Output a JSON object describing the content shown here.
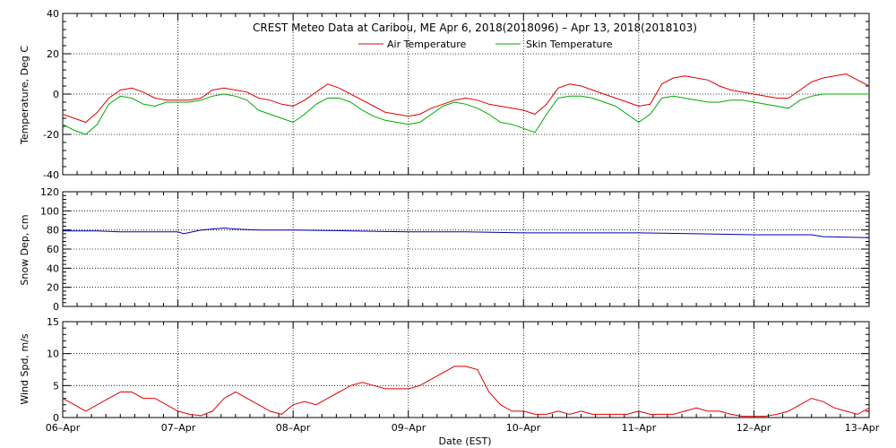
{
  "chart_data": [
    {
      "type": "line",
      "title": "CREST Meteo Data at Caribou, ME   Apr  6, 2018(2018096) – Apr 13, 2018(2018103)",
      "ylabel": "Temperature, Deg C",
      "xlabel": "",
      "ylim": [
        -40,
        40
      ],
      "yticks": [
        "-40",
        "-20",
        "0",
        "20",
        "40"
      ],
      "grid": true,
      "legend": "top-center",
      "series": [
        {
          "name": "Air Temperature",
          "color": "#e00000",
          "x": [
            0.0,
            0.1,
            0.2,
            0.3,
            0.4,
            0.5,
            0.6,
            0.7,
            0.8,
            0.9,
            1.0,
            1.1,
            1.2,
            1.3,
            1.4,
            1.5,
            1.6,
            1.7,
            1.8,
            1.9,
            2.0,
            2.1,
            2.2,
            2.3,
            2.4,
            2.5,
            2.6,
            2.7,
            2.8,
            2.9,
            3.0,
            3.1,
            3.2,
            3.3,
            3.4,
            3.5,
            3.6,
            3.7,
            3.8,
            3.9,
            4.0,
            4.1,
            4.2,
            4.3,
            4.4,
            4.5,
            4.6,
            4.7,
            4.8,
            4.9,
            5.0,
            5.1,
            5.2,
            5.3,
            5.4,
            5.5,
            5.6,
            5.7,
            5.8,
            5.9,
            6.0,
            6.1,
            6.2,
            6.3,
            6.4,
            6.5,
            6.6,
            6.7,
            6.8,
            6.9,
            7.0
          ],
          "y": [
            -10,
            -12,
            -14,
            -9,
            -2,
            2,
            3,
            1,
            -2,
            -3,
            -3,
            -3,
            -2,
            2,
            3,
            2,
            1,
            -2,
            -3,
            -5,
            -6,
            -3,
            1,
            5,
            3,
            0,
            -3,
            -6,
            -9,
            -10,
            -11,
            -10,
            -7,
            -5,
            -3,
            -2,
            -3,
            -5,
            -6,
            -7,
            -8,
            -10,
            -5,
            3,
            5,
            4,
            2,
            0,
            -2,
            -4,
            -6,
            -5,
            5,
            8,
            9,
            8,
            7,
            4,
            2,
            1,
            0,
            -1,
            -2,
            -2,
            2,
            6,
            8,
            9,
            10,
            7,
            4
          ]
        },
        {
          "name": "Skin Temperature",
          "color": "#00aa00",
          "x": [
            0.0,
            0.1,
            0.2,
            0.3,
            0.4,
            0.5,
            0.6,
            0.7,
            0.8,
            0.9,
            1.0,
            1.1,
            1.2,
            1.3,
            1.4,
            1.5,
            1.6,
            1.7,
            1.8,
            1.9,
            2.0,
            2.1,
            2.2,
            2.3,
            2.4,
            2.5,
            2.6,
            2.7,
            2.8,
            2.9,
            3.0,
            3.1,
            3.2,
            3.3,
            3.4,
            3.5,
            3.6,
            3.7,
            3.8,
            3.9,
            4.0,
            4.1,
            4.2,
            4.3,
            4.4,
            4.5,
            4.6,
            4.7,
            4.8,
            4.9,
            5.0,
            5.1,
            5.2,
            5.3,
            5.4,
            5.5,
            5.6,
            5.7,
            5.8,
            5.9,
            6.0,
            6.1,
            6.2,
            6.3,
            6.4,
            6.5,
            6.6,
            6.7,
            6.8,
            6.9,
            7.0
          ],
          "y": [
            -15,
            -18,
            -20,
            -15,
            -5,
            -1,
            -2,
            -5,
            -6,
            -4,
            -4,
            -4,
            -3,
            -1,
            0,
            -1,
            -3,
            -8,
            -10,
            -12,
            -14,
            -10,
            -5,
            -2,
            -2,
            -4,
            -8,
            -11,
            -13,
            -14,
            -15,
            -14,
            -10,
            -6,
            -4,
            -5,
            -7,
            -10,
            -14,
            -15,
            -17,
            -19,
            -10,
            -2,
            -1,
            -1,
            -2,
            -4,
            -6,
            -10,
            -14,
            -10,
            -2,
            -1,
            -2,
            -3,
            -4,
            -4,
            -3,
            -3,
            -4,
            -5,
            -6,
            -7,
            -3,
            -1,
            0,
            0,
            0,
            0,
            0
          ]
        }
      ]
    },
    {
      "type": "line",
      "ylabel": "Snow Dep, cm",
      "xlabel": "",
      "ylim": [
        0,
        120
      ],
      "yticks": [
        "0",
        "20",
        "40",
        "60",
        "80",
        "100",
        "120"
      ],
      "grid": true,
      "series": [
        {
          "color": "#0000aa",
          "x": [
            0.0,
            0.3,
            0.5,
            0.8,
            1.0,
            1.05,
            1.2,
            1.4,
            1.5,
            1.7,
            2.0,
            2.5,
            3.0,
            3.5,
            4.0,
            4.5,
            5.0,
            5.5,
            6.0,
            6.5,
            6.6,
            7.0
          ],
          "y": [
            79,
            79,
            78,
            78,
            78,
            76,
            80,
            82,
            81,
            80,
            80,
            79,
            78,
            78,
            77,
            77,
            77,
            76,
            75,
            75,
            73,
            72
          ]
        }
      ]
    },
    {
      "type": "line",
      "ylabel": "Wind Spd, m/s",
      "xlabel": "Date (EST)",
      "ylim": [
        0,
        15
      ],
      "yticks": [
        "0",
        "5",
        "10",
        "15"
      ],
      "xticks": [
        "06–Apr",
        "07–Apr",
        "08–Apr",
        "09–Apr",
        "10–Apr",
        "11–Apr",
        "12–Apr",
        "13–Apr"
      ],
      "grid": true,
      "series": [
        {
          "color": "#e00000",
          "x": [
            0.0,
            0.1,
            0.2,
            0.3,
            0.4,
            0.5,
            0.6,
            0.7,
            0.8,
            0.9,
            1.0,
            1.1,
            1.2,
            1.3,
            1.4,
            1.5,
            1.6,
            1.7,
            1.8,
            1.9,
            2.0,
            2.1,
            2.2,
            2.3,
            2.4,
            2.5,
            2.6,
            2.7,
            2.8,
            2.9,
            3.0,
            3.1,
            3.2,
            3.3,
            3.4,
            3.5,
            3.6,
            3.7,
            3.8,
            3.9,
            4.0,
            4.1,
            4.2,
            4.3,
            4.4,
            4.5,
            4.6,
            4.7,
            4.8,
            4.9,
            5.0,
            5.1,
            5.2,
            5.3,
            5.4,
            5.5,
            5.6,
            5.7,
            5.8,
            5.9,
            6.0,
            6.1,
            6.2,
            6.3,
            6.4,
            6.5,
            6.6,
            6.7,
            6.8,
            6.9,
            7.0
          ],
          "y": [
            3,
            2,
            1,
            2,
            3,
            4,
            4,
            3,
            3,
            2,
            1,
            0.5,
            0.3,
            1,
            3,
            4,
            3,
            2,
            1,
            0.5,
            2,
            2.5,
            2,
            3,
            4,
            5,
            5.5,
            5,
            4.5,
            4.5,
            4.5,
            5,
            6,
            7,
            8,
            8,
            7.5,
            4,
            2,
            1,
            1,
            0.5,
            0.5,
            1,
            0.5,
            1,
            0.5,
            0.5,
            0.5,
            0.5,
            1,
            0.5,
            0.5,
            0.5,
            1,
            1.5,
            1,
            1,
            0.5,
            0.2,
            0.2,
            0.2,
            0.5,
            1,
            2,
            3,
            2.5,
            1.5,
            1,
            0.5,
            1.5
          ]
        }
      ]
    }
  ]
}
